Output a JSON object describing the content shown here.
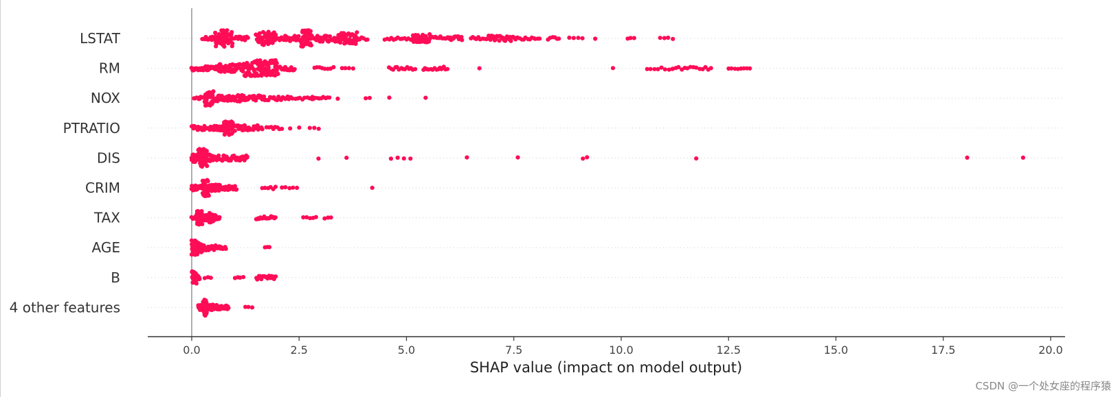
{
  "colors": {
    "dot": "#ff0d57",
    "axis": "#333333",
    "zero_line": "#999999",
    "row_grid": "#cccccc"
  },
  "watermark": "CSDN @一个处女座的程序猿",
  "chart_data": {
    "type": "scatter",
    "title": "",
    "xlabel": "SHAP value (impact on model output)",
    "ylabel": "",
    "xlim": [
      -1.0,
      20.2
    ],
    "xticks": [
      0.0,
      2.5,
      5.0,
      7.5,
      10.0,
      12.5,
      15.0,
      17.5,
      20.0
    ],
    "xtick_labels": [
      "0.0",
      "2.5",
      "5.0",
      "7.5",
      "10.0",
      "12.5",
      "15.0",
      "17.5",
      "20.0"
    ],
    "grid": false,
    "features": [
      {
        "name": "LSTAT",
        "clusters": [
          [
            0.25,
            0.6,
            16,
            3
          ],
          [
            0.55,
            0.95,
            60,
            12
          ],
          [
            1.0,
            1.3,
            12,
            3
          ],
          [
            1.5,
            1.95,
            50,
            10
          ],
          [
            2.0,
            2.55,
            24,
            4
          ],
          [
            2.55,
            2.8,
            45,
            12
          ],
          [
            2.85,
            3.45,
            40,
            5
          ],
          [
            3.45,
            3.85,
            45,
            9
          ],
          [
            3.85,
            4.1,
            6,
            2
          ],
          [
            4.5,
            5.15,
            14,
            2
          ],
          [
            5.15,
            5.55,
            40,
            6
          ],
          [
            5.55,
            6.0,
            12,
            3
          ],
          [
            6.0,
            6.3,
            14,
            3
          ],
          [
            6.5,
            6.9,
            10,
            2
          ],
          [
            6.9,
            7.5,
            28,
            4
          ],
          [
            7.5,
            8.1,
            14,
            2
          ],
          [
            8.3,
            8.55,
            6,
            2
          ],
          [
            8.8,
            9.1,
            4,
            1
          ],
          [
            9.4,
            9.45,
            1,
            1
          ],
          [
            10.15,
            10.3,
            3,
            1
          ],
          [
            10.9,
            11.2,
            4,
            1
          ]
        ]
      },
      {
        "name": "RM",
        "clusters": [
          [
            0.0,
            0.6,
            35,
            3
          ],
          [
            0.6,
            1.2,
            50,
            6
          ],
          [
            1.2,
            1.7,
            60,
            12
          ],
          [
            1.7,
            2.0,
            50,
            12
          ],
          [
            2.0,
            2.4,
            14,
            3
          ],
          [
            2.85,
            3.3,
            8,
            2
          ],
          [
            3.5,
            3.75,
            4,
            1
          ],
          [
            4.6,
            5.2,
            14,
            2
          ],
          [
            5.4,
            5.95,
            14,
            3
          ],
          [
            6.7,
            6.7,
            1,
            1
          ],
          [
            9.8,
            9.8,
            1,
            1
          ],
          [
            10.6,
            11.2,
            8,
            2
          ],
          [
            11.2,
            12.1,
            14,
            2
          ],
          [
            12.5,
            13.0,
            8,
            1
          ]
        ]
      },
      {
        "name": "NOX",
        "clusters": [
          [
            0.05,
            0.3,
            10,
            2
          ],
          [
            0.3,
            0.5,
            40,
            11
          ],
          [
            0.5,
            1.2,
            40,
            5
          ],
          [
            1.2,
            1.7,
            24,
            4
          ],
          [
            1.7,
            2.3,
            20,
            3
          ],
          [
            2.3,
            2.8,
            10,
            2
          ],
          [
            2.8,
            3.2,
            10,
            2
          ],
          [
            3.4,
            3.45,
            1,
            1
          ],
          [
            4.05,
            4.15,
            2,
            1
          ],
          [
            4.6,
            4.6,
            1,
            1
          ],
          [
            5.45,
            5.45,
            1,
            1
          ]
        ]
      },
      {
        "name": "PTRATIO",
        "clusters": [
          [
            0.0,
            0.5,
            24,
            3
          ],
          [
            0.5,
            0.75,
            20,
            4
          ],
          [
            0.75,
            0.95,
            35,
            10
          ],
          [
            0.95,
            1.55,
            30,
            4
          ],
          [
            1.55,
            1.65,
            6,
            2
          ],
          [
            1.75,
            2.1,
            8,
            2
          ],
          [
            2.3,
            2.5,
            2,
            1
          ],
          [
            2.75,
            2.95,
            3,
            1
          ]
        ]
      },
      {
        "name": "DIS",
        "clusters": [
          [
            0.0,
            0.15,
            20,
            6
          ],
          [
            0.15,
            0.35,
            60,
            13
          ],
          [
            0.35,
            0.5,
            20,
            5
          ],
          [
            0.5,
            1.3,
            45,
            4
          ],
          [
            2.95,
            2.95,
            1,
            1
          ],
          [
            3.6,
            3.6,
            1,
            1
          ],
          [
            4.65,
            5.1,
            4,
            1
          ],
          [
            6.4,
            6.4,
            1,
            1
          ],
          [
            7.6,
            7.6,
            1,
            1
          ],
          [
            9.1,
            9.2,
            2,
            1
          ],
          [
            11.75,
            11.75,
            1,
            1
          ],
          [
            18.05,
            18.05,
            1,
            1
          ],
          [
            19.35,
            19.35,
            1,
            1
          ]
        ]
      },
      {
        "name": "CRIM",
        "clusters": [
          [
            0.0,
            0.25,
            24,
            4
          ],
          [
            0.25,
            0.4,
            45,
            12
          ],
          [
            0.4,
            0.65,
            30,
            5
          ],
          [
            0.65,
            1.05,
            18,
            3
          ],
          [
            1.65,
            1.95,
            6,
            2
          ],
          [
            2.1,
            2.45,
            5,
            1
          ],
          [
            4.2,
            4.2,
            1,
            1
          ]
        ]
      },
      {
        "name": "TAX",
        "clusters": [
          [
            0.0,
            0.1,
            6,
            2
          ],
          [
            0.1,
            0.25,
            35,
            10
          ],
          [
            0.25,
            0.4,
            20,
            4
          ],
          [
            0.4,
            0.55,
            20,
            7
          ],
          [
            0.55,
            0.65,
            6,
            2
          ],
          [
            1.5,
            1.95,
            18,
            3
          ],
          [
            2.6,
            2.9,
            5,
            1
          ],
          [
            3.1,
            3.25,
            3,
            1
          ]
        ]
      },
      {
        "name": "AGE",
        "clusters": [
          [
            0.0,
            0.15,
            40,
            11
          ],
          [
            0.15,
            0.3,
            30,
            7
          ],
          [
            0.3,
            0.55,
            20,
            4
          ],
          [
            0.55,
            0.8,
            10,
            2
          ],
          [
            1.7,
            1.8,
            3,
            1
          ]
        ]
      },
      {
        "name": "B",
        "clusters": [
          [
            0.0,
            0.12,
            30,
            9
          ],
          [
            0.12,
            0.18,
            10,
            3
          ],
          [
            0.3,
            0.45,
            3,
            1
          ],
          [
            1.0,
            1.2,
            4,
            1
          ],
          [
            1.5,
            1.95,
            16,
            3
          ]
        ]
      },
      {
        "name": "4 other features",
        "clusters": [
          [
            0.15,
            0.25,
            15,
            4
          ],
          [
            0.25,
            0.35,
            40,
            12
          ],
          [
            0.35,
            0.6,
            25,
            4
          ],
          [
            0.6,
            0.85,
            20,
            3
          ],
          [
            1.25,
            1.4,
            3,
            1
          ]
        ]
      }
    ]
  }
}
